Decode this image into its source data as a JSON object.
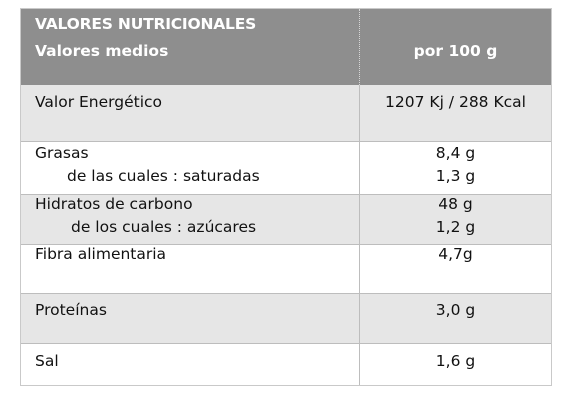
{
  "header": {
    "title": "VALORES NUTRICIONALES",
    "subtitle": "Valores medios",
    "per": "por 100 g"
  },
  "rows": [
    {
      "label": "Valor Energético",
      "value": "1207 Kj / 288 Kcal"
    },
    {
      "label": "Grasas",
      "sub_label": "de las cuales : saturadas",
      "value": "8,4 g",
      "sub_value": "1,3 g"
    },
    {
      "label": "Hidratos de carbono",
      "sub_label": "de los cuales : azúcares",
      "value": "48 g",
      "sub_value": "1,2 g"
    },
    {
      "label": "Fibra alimentaria",
      "value": "4,7g"
    },
    {
      "label": "Proteínas",
      "value": "3,0 g"
    },
    {
      "label": "Sal",
      "value": "1,6 g"
    }
  ]
}
